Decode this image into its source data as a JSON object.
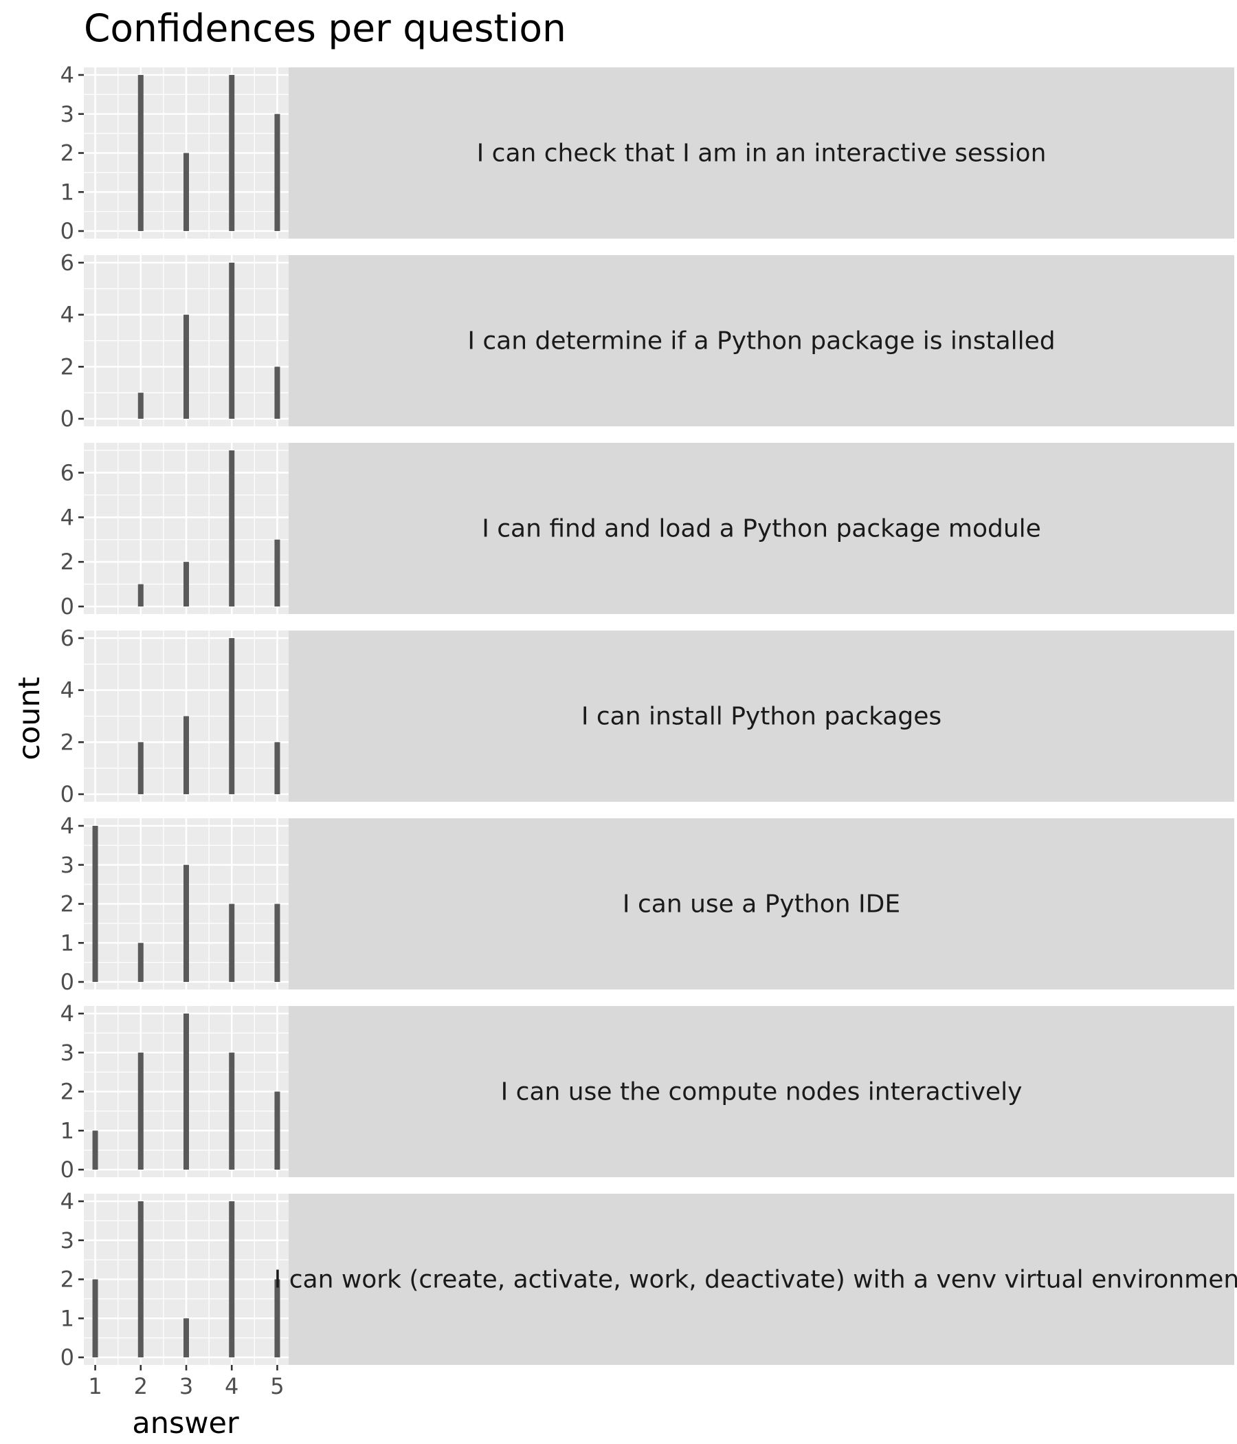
{
  "chart_data": {
    "type": "bar",
    "title": "Confidences per question",
    "xlabel": "answer",
    "ylabel": "count",
    "x_ticks": [
      "1",
      "2",
      "3",
      "4",
      "5"
    ],
    "xlim": [
      0.75,
      5.25
    ],
    "facet_strip_position": "right",
    "grid": true,
    "colors": {
      "bar": "#595959",
      "panel_background": "#ebebeb",
      "grid": "#ffffff",
      "strip_background": "#d9d9d9",
      "tick_mark": "#333333"
    },
    "facets": [
      {
        "label": "I can check that I am in an interactive session",
        "ylim": [
          0,
          4
        ],
        "y_ticks": [
          "0",
          "1",
          "2",
          "3",
          "4"
        ],
        "bars": [
          {
            "x": 2,
            "y": 4
          },
          {
            "x": 3,
            "y": 2
          },
          {
            "x": 4,
            "y": 4
          },
          {
            "x": 5,
            "y": 3
          }
        ]
      },
      {
        "label": "I can determine if a Python package is installed",
        "ylim": [
          0,
          6
        ],
        "y_ticks": [
          "0",
          "2",
          "4",
          "6"
        ],
        "bars": [
          {
            "x": 2,
            "y": 1
          },
          {
            "x": 3,
            "y": 4
          },
          {
            "x": 4,
            "y": 6
          },
          {
            "x": 5,
            "y": 2
          }
        ]
      },
      {
        "label": "I can find and load a Python package module",
        "ylim": [
          0,
          7
        ],
        "y_ticks": [
          "0",
          "2",
          "4",
          "6"
        ],
        "bars": [
          {
            "x": 2,
            "y": 1
          },
          {
            "x": 3,
            "y": 2
          },
          {
            "x": 4,
            "y": 7
          },
          {
            "x": 5,
            "y": 3
          }
        ]
      },
      {
        "label": "I can install Python packages",
        "ylim": [
          0,
          6
        ],
        "y_ticks": [
          "0",
          "2",
          "4",
          "6"
        ],
        "bars": [
          {
            "x": 2,
            "y": 2
          },
          {
            "x": 3,
            "y": 3
          },
          {
            "x": 4,
            "y": 6
          },
          {
            "x": 5,
            "y": 2
          }
        ]
      },
      {
        "label": "I can use a Python IDE",
        "ylim": [
          0,
          4
        ],
        "y_ticks": [
          "0",
          "1",
          "2",
          "3",
          "4"
        ],
        "bars": [
          {
            "x": 1,
            "y": 4
          },
          {
            "x": 2,
            "y": 1
          },
          {
            "x": 3,
            "y": 3
          },
          {
            "x": 4,
            "y": 2
          },
          {
            "x": 5,
            "y": 2
          }
        ]
      },
      {
        "label": "I can use the compute nodes interactively",
        "ylim": [
          0,
          4
        ],
        "y_ticks": [
          "0",
          "1",
          "2",
          "3",
          "4"
        ],
        "bars": [
          {
            "x": 1,
            "y": 1
          },
          {
            "x": 2,
            "y": 3
          },
          {
            "x": 3,
            "y": 4
          },
          {
            "x": 4,
            "y": 3
          },
          {
            "x": 5,
            "y": 2
          }
        ]
      },
      {
        "label": "I can work (create, activate, work, deactivate) with a venv virtual environment",
        "ylim": [
          0,
          4
        ],
        "y_ticks": [
          "0",
          "1",
          "2",
          "3",
          "4"
        ],
        "bars": [
          {
            "x": 1,
            "y": 2
          },
          {
            "x": 2,
            "y": 4
          },
          {
            "x": 3,
            "y": 1
          },
          {
            "x": 4,
            "y": 4
          },
          {
            "x": 5,
            "y": 2
          }
        ]
      }
    ]
  }
}
